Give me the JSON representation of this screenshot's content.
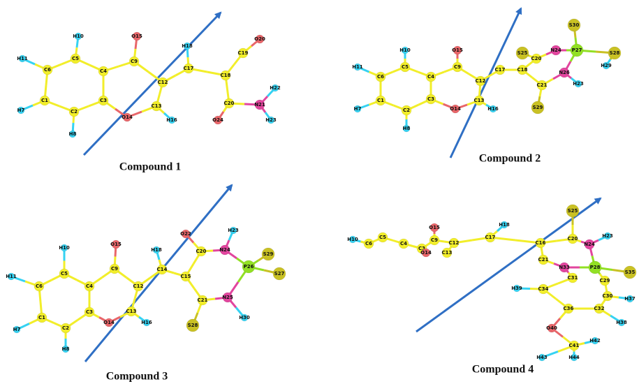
{
  "compounds": [
    {
      "caption": "Compound 1",
      "atoms": [
        "C1",
        "C2",
        "C3",
        "C4",
        "C5",
        "C6",
        "H7",
        "H8",
        "C9",
        "H10",
        "H11",
        "C12",
        "C13",
        "O14",
        "O15",
        "H16",
        "C17",
        "H18",
        "C19",
        "C18",
        "O20",
        "C20",
        "N21",
        "H22",
        "H23",
        "O24"
      ]
    },
    {
      "caption": "Compound 2",
      "atoms": [
        "C1",
        "C2",
        "C3",
        "C4",
        "C5",
        "C6",
        "H7",
        "H8",
        "C9",
        "H10",
        "H11",
        "O15",
        "C12",
        "C13",
        "O14",
        "H16",
        "C17",
        "C18",
        "C20",
        "S25",
        "N24",
        "P27",
        "S30",
        "S28",
        "H29",
        "N26",
        "H23",
        "C21",
        "S29"
      ]
    },
    {
      "caption": "Compound 3",
      "atoms": [
        "C1",
        "C2",
        "C3",
        "C4",
        "C5",
        "C6",
        "H7",
        "H8",
        "C9",
        "H10",
        "H11",
        "O15",
        "C12",
        "C13",
        "O14",
        "H16",
        "C14",
        "H18",
        "C15",
        "C20",
        "O22",
        "N24",
        "H23",
        "P26",
        "S29",
        "S27",
        "N25",
        "H30",
        "C21",
        "S28"
      ]
    },
    {
      "caption": "Compound 4",
      "atoms": [
        "H10",
        "C6",
        "C5",
        "C4",
        "C3",
        "C9",
        "O15",
        "O14",
        "C12",
        "C13",
        "C17",
        "H18",
        "C16",
        "C20",
        "S25",
        "N24",
        "H23",
        "P28",
        "S35",
        "N33",
        "C21",
        "C31",
        "C29",
        "C30",
        "H37",
        "C32",
        "H38",
        "C36",
        "C34",
        "H39",
        "O40",
        "C41",
        "H42",
        "H43",
        "H44"
      ]
    }
  ]
}
